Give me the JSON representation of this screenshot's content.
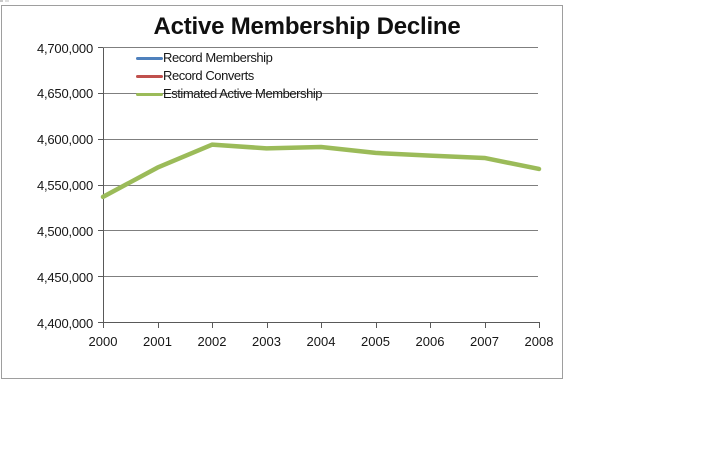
{
  "page": {
    "background": "#ffffff"
  },
  "chart": {
    "border_color": "#9e9e9e",
    "gridline_color": "#7f7f7f",
    "axis_color": "#595959",
    "text_color": "#161616"
  },
  "chart_data": {
    "type": "line",
    "title": "Active Membership Decline",
    "categories": [
      "2000",
      "2001",
      "2002",
      "2003",
      "2004",
      "2005",
      "2006",
      "2007",
      "2008"
    ],
    "series": [
      {
        "name": "Record Membership",
        "color": "#4F81BD",
        "values": []
      },
      {
        "name": "Record Converts",
        "color": "#C0504D",
        "values": []
      },
      {
        "name": "Estimated Active Membership",
        "color": "#9BBB59",
        "values": [
          4537000,
          4569000,
          4594000,
          4590000,
          4591500,
          4585000,
          4582000,
          4579500,
          4567500
        ]
      }
    ],
    "ylim": [
      4400000,
      4700000
    ],
    "ytick_step": 50000,
    "ytick_labels": [
      "4,700,000",
      "4,650,000",
      "4,600,000",
      "4,550,000",
      "4,500,000",
      "4,450,000",
      "4,400,000"
    ],
    "xlabel": "",
    "ylabel": "",
    "grid": true,
    "legend_position": "top-left-inside"
  }
}
